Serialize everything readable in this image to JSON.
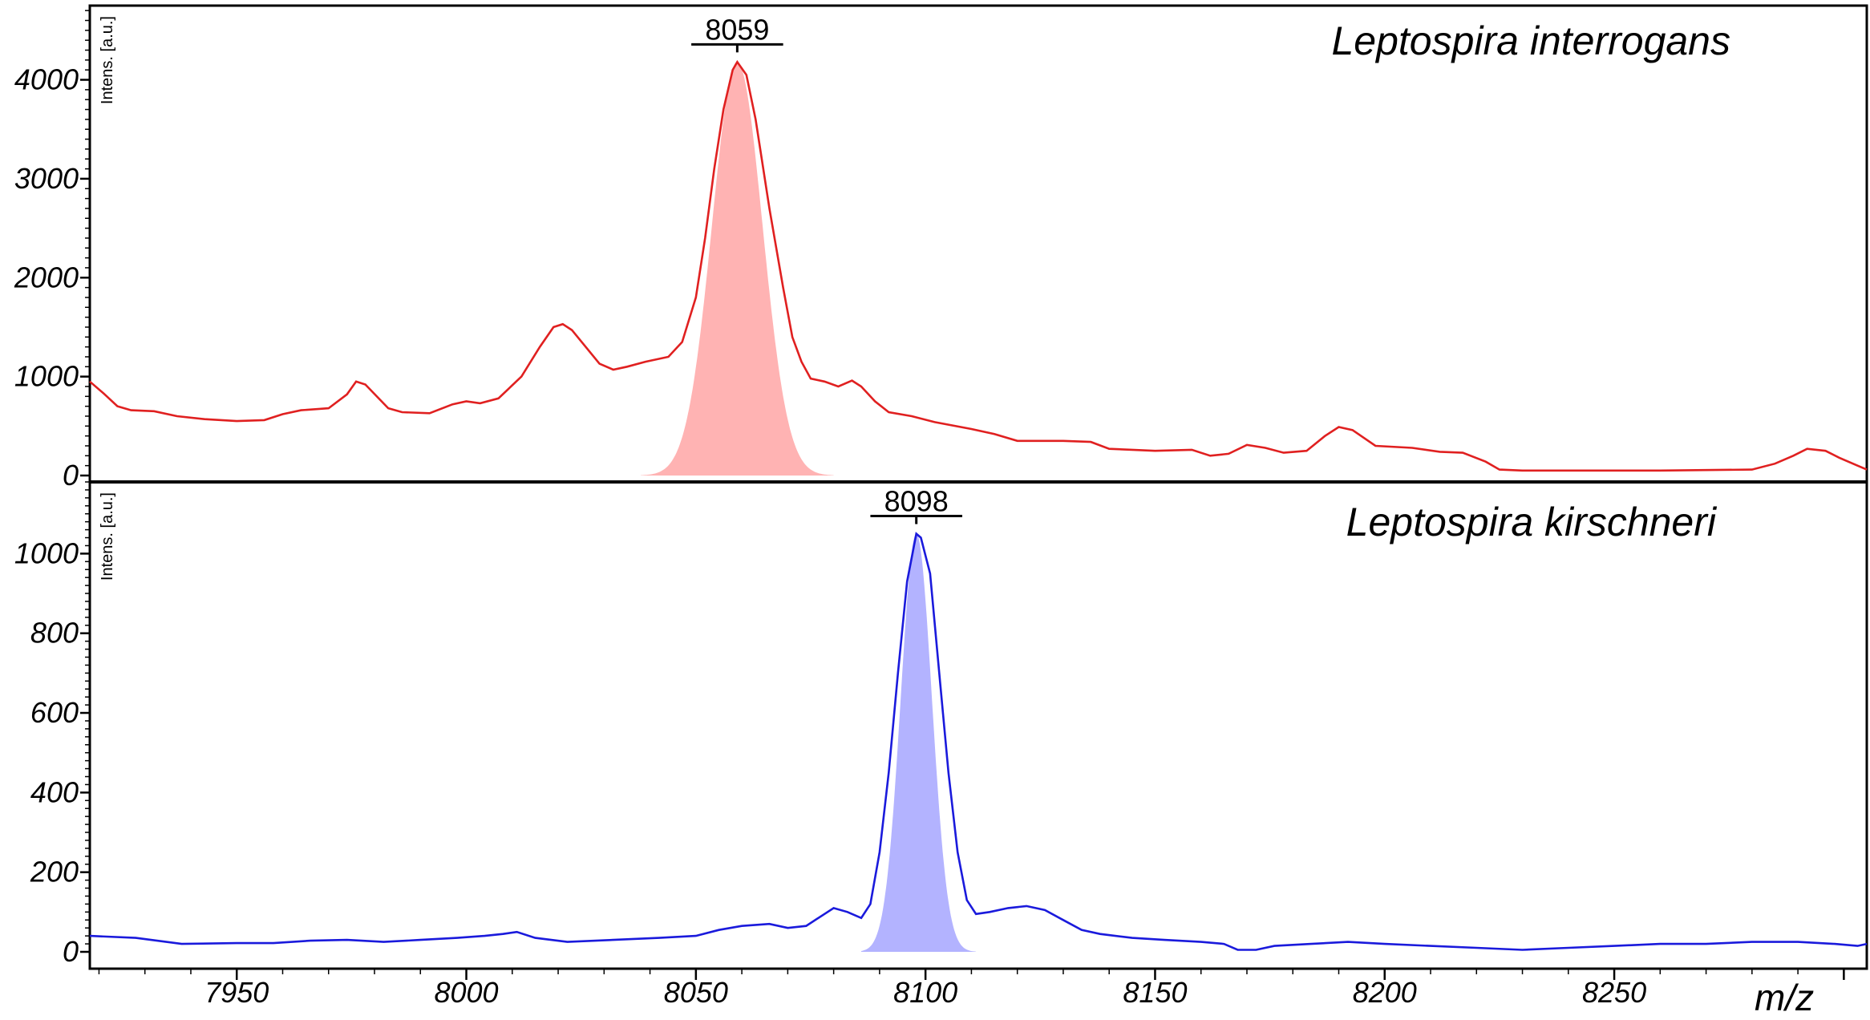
{
  "chart_data": {
    "type": "line",
    "xlabel": "m/z",
    "xlim": [
      7918,
      8305
    ],
    "xticks": [
      7950,
      8000,
      8050,
      8100,
      8150,
      8200,
      8250
    ],
    "panels": [
      {
        "species": "Leptospira interrogans",
        "ylabel": "Intens. [a.u.]",
        "ylim": [
          0,
          4750
        ],
        "yticks": [
          0,
          1000,
          2000,
          3000,
          4000
        ],
        "line_color": "#e02020",
        "fill_color": "#ffb3b3",
        "peak": {
          "label": "8059",
          "x": 8059,
          "y": 4180,
          "half_width": 10
        },
        "highlight": {
          "x0": 8038,
          "x1": 8080,
          "sigma": 5.5,
          "y": 4180
        },
        "series": [
          [
            7918,
            950
          ],
          [
            7921,
            830
          ],
          [
            7924,
            700
          ],
          [
            7927,
            660
          ],
          [
            7932,
            650
          ],
          [
            7937,
            600
          ],
          [
            7943,
            570
          ],
          [
            7950,
            550
          ],
          [
            7956,
            560
          ],
          [
            7960,
            620
          ],
          [
            7964,
            660
          ],
          [
            7970,
            680
          ],
          [
            7974,
            820
          ],
          [
            7976,
            950
          ],
          [
            7978,
            920
          ],
          [
            7983,
            680
          ],
          [
            7986,
            640
          ],
          [
            7992,
            630
          ],
          [
            7997,
            720
          ],
          [
            8000,
            750
          ],
          [
            8003,
            730
          ],
          [
            8007,
            780
          ],
          [
            8012,
            1000
          ],
          [
            8016,
            1300
          ],
          [
            8019,
            1500
          ],
          [
            8021,
            1530
          ],
          [
            8023,
            1470
          ],
          [
            8026,
            1300
          ],
          [
            8029,
            1130
          ],
          [
            8032,
            1070
          ],
          [
            8035,
            1100
          ],
          [
            8039,
            1150
          ],
          [
            8044,
            1200
          ],
          [
            8047,
            1350
          ],
          [
            8050,
            1800
          ],
          [
            8052,
            2400
          ],
          [
            8054,
            3100
          ],
          [
            8056,
            3700
          ],
          [
            8058,
            4100
          ],
          [
            8059,
            4180
          ],
          [
            8061,
            4050
          ],
          [
            8063,
            3600
          ],
          [
            8066,
            2700
          ],
          [
            8069,
            1900
          ],
          [
            8071,
            1400
          ],
          [
            8073,
            1150
          ],
          [
            8075,
            980
          ],
          [
            8078,
            950
          ],
          [
            8081,
            900
          ],
          [
            8084,
            960
          ],
          [
            8086,
            900
          ],
          [
            8089,
            750
          ],
          [
            8092,
            640
          ],
          [
            8097,
            600
          ],
          [
            8102,
            540
          ],
          [
            8110,
            470
          ],
          [
            8115,
            420
          ],
          [
            8120,
            350
          ],
          [
            8130,
            350
          ],
          [
            8136,
            340
          ],
          [
            8140,
            270
          ],
          [
            8145,
            260
          ],
          [
            8150,
            250
          ],
          [
            8158,
            260
          ],
          [
            8162,
            200
          ],
          [
            8166,
            220
          ],
          [
            8170,
            310
          ],
          [
            8174,
            280
          ],
          [
            8178,
            230
          ],
          [
            8183,
            250
          ],
          [
            8187,
            400
          ],
          [
            8190,
            490
          ],
          [
            8193,
            460
          ],
          [
            8198,
            300
          ],
          [
            8206,
            280
          ],
          [
            8212,
            240
          ],
          [
            8217,
            230
          ],
          [
            8222,
            140
          ],
          [
            8225,
            60
          ],
          [
            8230,
            50
          ],
          [
            8240,
            50
          ],
          [
            8260,
            50
          ],
          [
            8280,
            60
          ],
          [
            8285,
            120
          ],
          [
            8289,
            200
          ],
          [
            8292,
            270
          ],
          [
            8296,
            250
          ],
          [
            8299,
            180
          ],
          [
            8303,
            100
          ],
          [
            8305,
            60
          ]
        ]
      },
      {
        "species": "Leptospira kirschneri",
        "ylabel": "Intens. [a.u.]",
        "ylim": [
          0,
          1180
        ],
        "yticks": [
          0,
          200,
          400,
          600,
          800,
          1000
        ],
        "line_color": "#1a1adc",
        "fill_color": "#b3b3ff",
        "peak": {
          "label": "8098",
          "x": 8098,
          "y": 1050,
          "half_width": 10
        },
        "highlight": {
          "x0": 8086,
          "x1": 8111,
          "sigma": 3.4,
          "y": 1050
        },
        "series": [
          [
            7918,
            40
          ],
          [
            7928,
            35
          ],
          [
            7938,
            20
          ],
          [
            7950,
            22
          ],
          [
            7958,
            22
          ],
          [
            7966,
            28
          ],
          [
            7974,
            30
          ],
          [
            7982,
            25
          ],
          [
            7990,
            30
          ],
          [
            7998,
            35
          ],
          [
            8004,
            40
          ],
          [
            8008,
            45
          ],
          [
            8011,
            50
          ],
          [
            8015,
            35
          ],
          [
            8022,
            25
          ],
          [
            8032,
            30
          ],
          [
            8042,
            35
          ],
          [
            8050,
            40
          ],
          [
            8055,
            55
          ],
          [
            8060,
            65
          ],
          [
            8066,
            70
          ],
          [
            8070,
            60
          ],
          [
            8074,
            65
          ],
          [
            8078,
            95
          ],
          [
            8080,
            110
          ],
          [
            8083,
            100
          ],
          [
            8086,
            85
          ],
          [
            8088,
            120
          ],
          [
            8090,
            250
          ],
          [
            8092,
            450
          ],
          [
            8094,
            700
          ],
          [
            8096,
            930
          ],
          [
            8098,
            1050
          ],
          [
            8099,
            1040
          ],
          [
            8101,
            950
          ],
          [
            8103,
            700
          ],
          [
            8105,
            450
          ],
          [
            8107,
            250
          ],
          [
            8109,
            130
          ],
          [
            8111,
            95
          ],
          [
            8114,
            100
          ],
          [
            8118,
            110
          ],
          [
            8122,
            115
          ],
          [
            8126,
            105
          ],
          [
            8130,
            80
          ],
          [
            8134,
            55
          ],
          [
            8138,
            45
          ],
          [
            8145,
            35
          ],
          [
            8152,
            30
          ],
          [
            8160,
            25
          ],
          [
            8165,
            20
          ],
          [
            8168,
            5
          ],
          [
            8172,
            5
          ],
          [
            8176,
            15
          ],
          [
            8184,
            20
          ],
          [
            8192,
            25
          ],
          [
            8200,
            20
          ],
          [
            8210,
            15
          ],
          [
            8220,
            10
          ],
          [
            8230,
            5
          ],
          [
            8240,
            10
          ],
          [
            8250,
            15
          ],
          [
            8260,
            20
          ],
          [
            8270,
            20
          ],
          [
            8280,
            25
          ],
          [
            8290,
            25
          ],
          [
            8298,
            20
          ],
          [
            8303,
            15
          ],
          [
            8305,
            20
          ]
        ]
      }
    ]
  }
}
